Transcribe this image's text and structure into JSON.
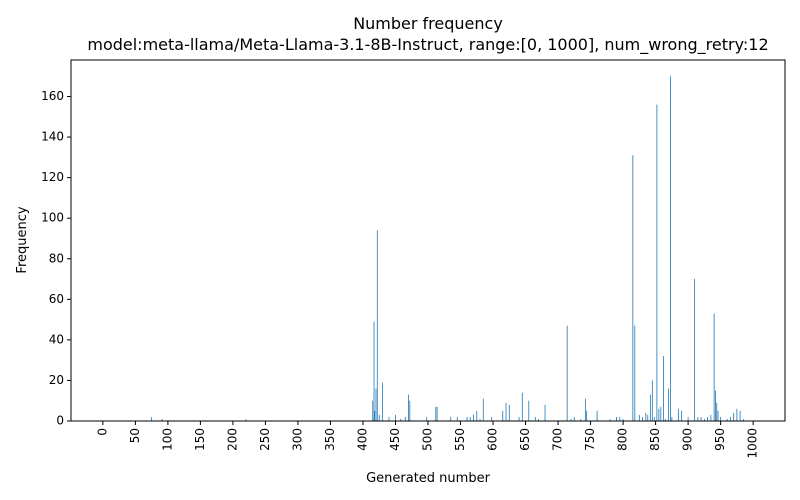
{
  "chart_data": {
    "type": "bar",
    "title": "Number frequency",
    "subtitle": "model:meta-llama/Meta-Llama-3.1-8B-Instruct, range:[0, 1000], num_wrong_retry:12",
    "xlabel": "Generated number",
    "ylabel": "Frequency",
    "xlim": [
      -49,
      1049
    ],
    "ylim": [
      0,
      178
    ],
    "x_ticks": [
      0,
      50,
      100,
      150,
      200,
      250,
      300,
      350,
      400,
      450,
      500,
      550,
      600,
      650,
      700,
      750,
      800,
      850,
      900,
      950,
      1000
    ],
    "y_ticks": [
      0,
      20,
      40,
      60,
      80,
      100,
      120,
      140,
      160
    ],
    "bar_color": "#1f77b4",
    "x": [
      75,
      91,
      220,
      415,
      417,
      418,
      420,
      422,
      425,
      430,
      440,
      450,
      458,
      465,
      470,
      472,
      498,
      512,
      514,
      535,
      545,
      560,
      565,
      570,
      575,
      580,
      585,
      598,
      615,
      620,
      625,
      640,
      645,
      655,
      665,
      670,
      680,
      714,
      720,
      725,
      735,
      742,
      744,
      760,
      780,
      790,
      795,
      800,
      815,
      818,
      825,
      830,
      835,
      838,
      842,
      845,
      848,
      852,
      855,
      858,
      862,
      865,
      870,
      873,
      875,
      885,
      890,
      900,
      910,
      915,
      920,
      925,
      930,
      935,
      940,
      942,
      944,
      946,
      950,
      960,
      965,
      970,
      975,
      980,
      985
    ],
    "values": [
      2,
      1,
      1,
      10,
      49,
      5,
      16,
      94,
      3,
      19,
      2,
      3,
      1,
      2,
      13,
      10,
      2,
      7,
      7,
      2,
      2,
      2,
      2,
      3,
      5,
      1,
      11,
      2,
      5,
      9,
      8,
      2,
      14,
      10,
      2,
      1,
      8,
      47,
      1,
      2,
      1,
      11,
      5,
      5,
      1,
      2,
      2,
      1,
      131,
      47,
      3,
      2,
      4,
      3,
      13,
      20,
      2,
      156,
      6,
      7,
      32,
      1,
      16,
      170,
      2,
      6,
      5,
      2,
      70,
      2,
      2,
      1,
      2,
      3,
      53,
      15,
      9,
      5,
      2,
      1,
      2,
      4,
      6,
      5,
      1
    ]
  }
}
